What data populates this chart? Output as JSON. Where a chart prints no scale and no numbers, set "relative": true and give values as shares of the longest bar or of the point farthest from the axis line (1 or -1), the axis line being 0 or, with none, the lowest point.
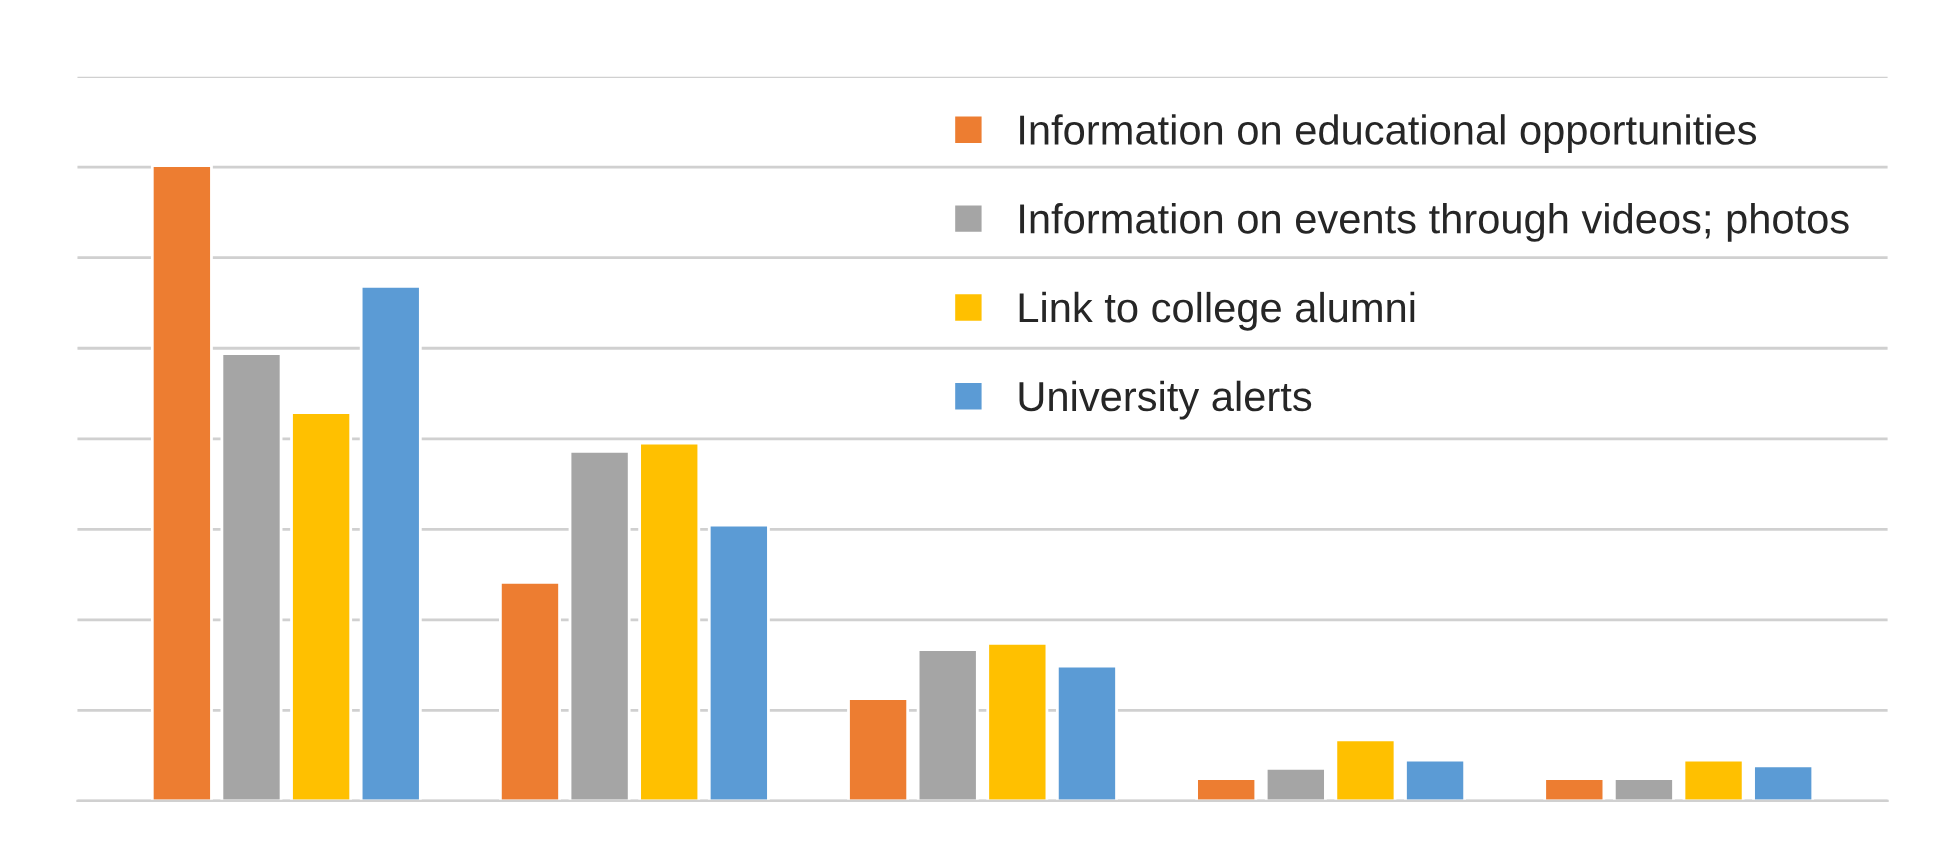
{
  "chart_data": {
    "type": "bar",
    "relative": true,
    "categories": [
      null,
      null,
      null,
      null,
      null
    ],
    "series": [
      {
        "name": "Information on educational opportunities",
        "color": "#ed7d31",
        "values": [
          1.0,
          0.344,
          0.161,
          0.035,
          0.035
        ]
      },
      {
        "name": "Information on events through videos; photos",
        "color": "#a5a5a5",
        "values": [
          0.704,
          0.55,
          0.238,
          0.051,
          0.035
        ]
      },
      {
        "name": "Link to college alumni",
        "color": "#ffc000",
        "values": [
          0.611,
          0.563,
          0.248,
          0.096,
          0.064
        ]
      },
      {
        "name": "University alerts",
        "color": "#5b9bd5",
        "values": [
          0.81,
          0.434,
          0.212,
          0.064,
          0.055
        ]
      }
    ],
    "grid": "y",
    "legend": "top right"
  }
}
